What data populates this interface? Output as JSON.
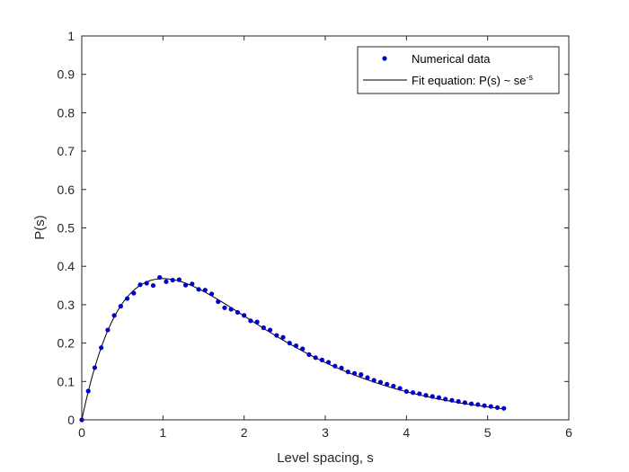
{
  "chart_data": {
    "type": "scatter",
    "xlabel": "Level spacing, s",
    "ylabel": "P(s)",
    "xlim": [
      0,
      6
    ],
    "ylim": [
      0,
      1
    ],
    "x_ticks": [
      "0",
      "1",
      "2",
      "3",
      "4",
      "5",
      "6"
    ],
    "y_ticks": [
      "0",
      "0.1",
      "0.2",
      "0.3",
      "0.4",
      "0.5",
      "0.6",
      "0.7",
      "0.8",
      "0.9",
      "1"
    ],
    "grid": false,
    "legend_position": "top-right",
    "series": [
      {
        "name": "Numerical data",
        "style": "markers",
        "color": "#0000cc",
        "x": [
          0.0,
          0.08,
          0.16,
          0.24,
          0.32,
          0.4,
          0.48,
          0.56,
          0.64,
          0.72,
          0.8,
          0.88,
          0.96,
          1.04,
          1.12,
          1.2,
          1.28,
          1.36,
          1.44,
          1.52,
          1.6,
          1.68,
          1.76,
          1.84,
          1.92,
          2.0,
          2.08,
          2.16,
          2.24,
          2.32,
          2.4,
          2.48,
          2.56,
          2.64,
          2.72,
          2.8,
          2.88,
          2.96,
          3.04,
          3.12,
          3.2,
          3.28,
          3.36,
          3.44,
          3.52,
          3.6,
          3.68,
          3.76,
          3.84,
          3.92,
          4.0,
          4.08,
          4.16,
          4.24,
          4.32,
          4.4,
          4.48,
          4.56,
          4.64,
          4.72,
          4.8,
          4.88,
          4.96,
          5.04,
          5.12,
          5.2
        ],
        "y": [
          0.0,
          0.075,
          0.136,
          0.188,
          0.234,
          0.272,
          0.296,
          0.316,
          0.33,
          0.352,
          0.356,
          0.35,
          0.371,
          0.36,
          0.364,
          0.365,
          0.351,
          0.354,
          0.34,
          0.338,
          0.328,
          0.308,
          0.292,
          0.288,
          0.28,
          0.272,
          0.258,
          0.255,
          0.24,
          0.234,
          0.22,
          0.215,
          0.2,
          0.193,
          0.185,
          0.17,
          0.162,
          0.156,
          0.15,
          0.14,
          0.135,
          0.125,
          0.121,
          0.118,
          0.11,
          0.103,
          0.098,
          0.093,
          0.088,
          0.082,
          0.074,
          0.071,
          0.068,
          0.064,
          0.061,
          0.058,
          0.054,
          0.051,
          0.048,
          0.045,
          0.042,
          0.04,
          0.037,
          0.035,
          0.032,
          0.03
        ]
      },
      {
        "name": "Fit equation: P(s) ~ se",
        "name_superscript": "-s",
        "style": "line",
        "color": "#000000",
        "equation": "s*exp(-s)",
        "x_range": [
          0,
          5.2
        ]
      }
    ]
  }
}
